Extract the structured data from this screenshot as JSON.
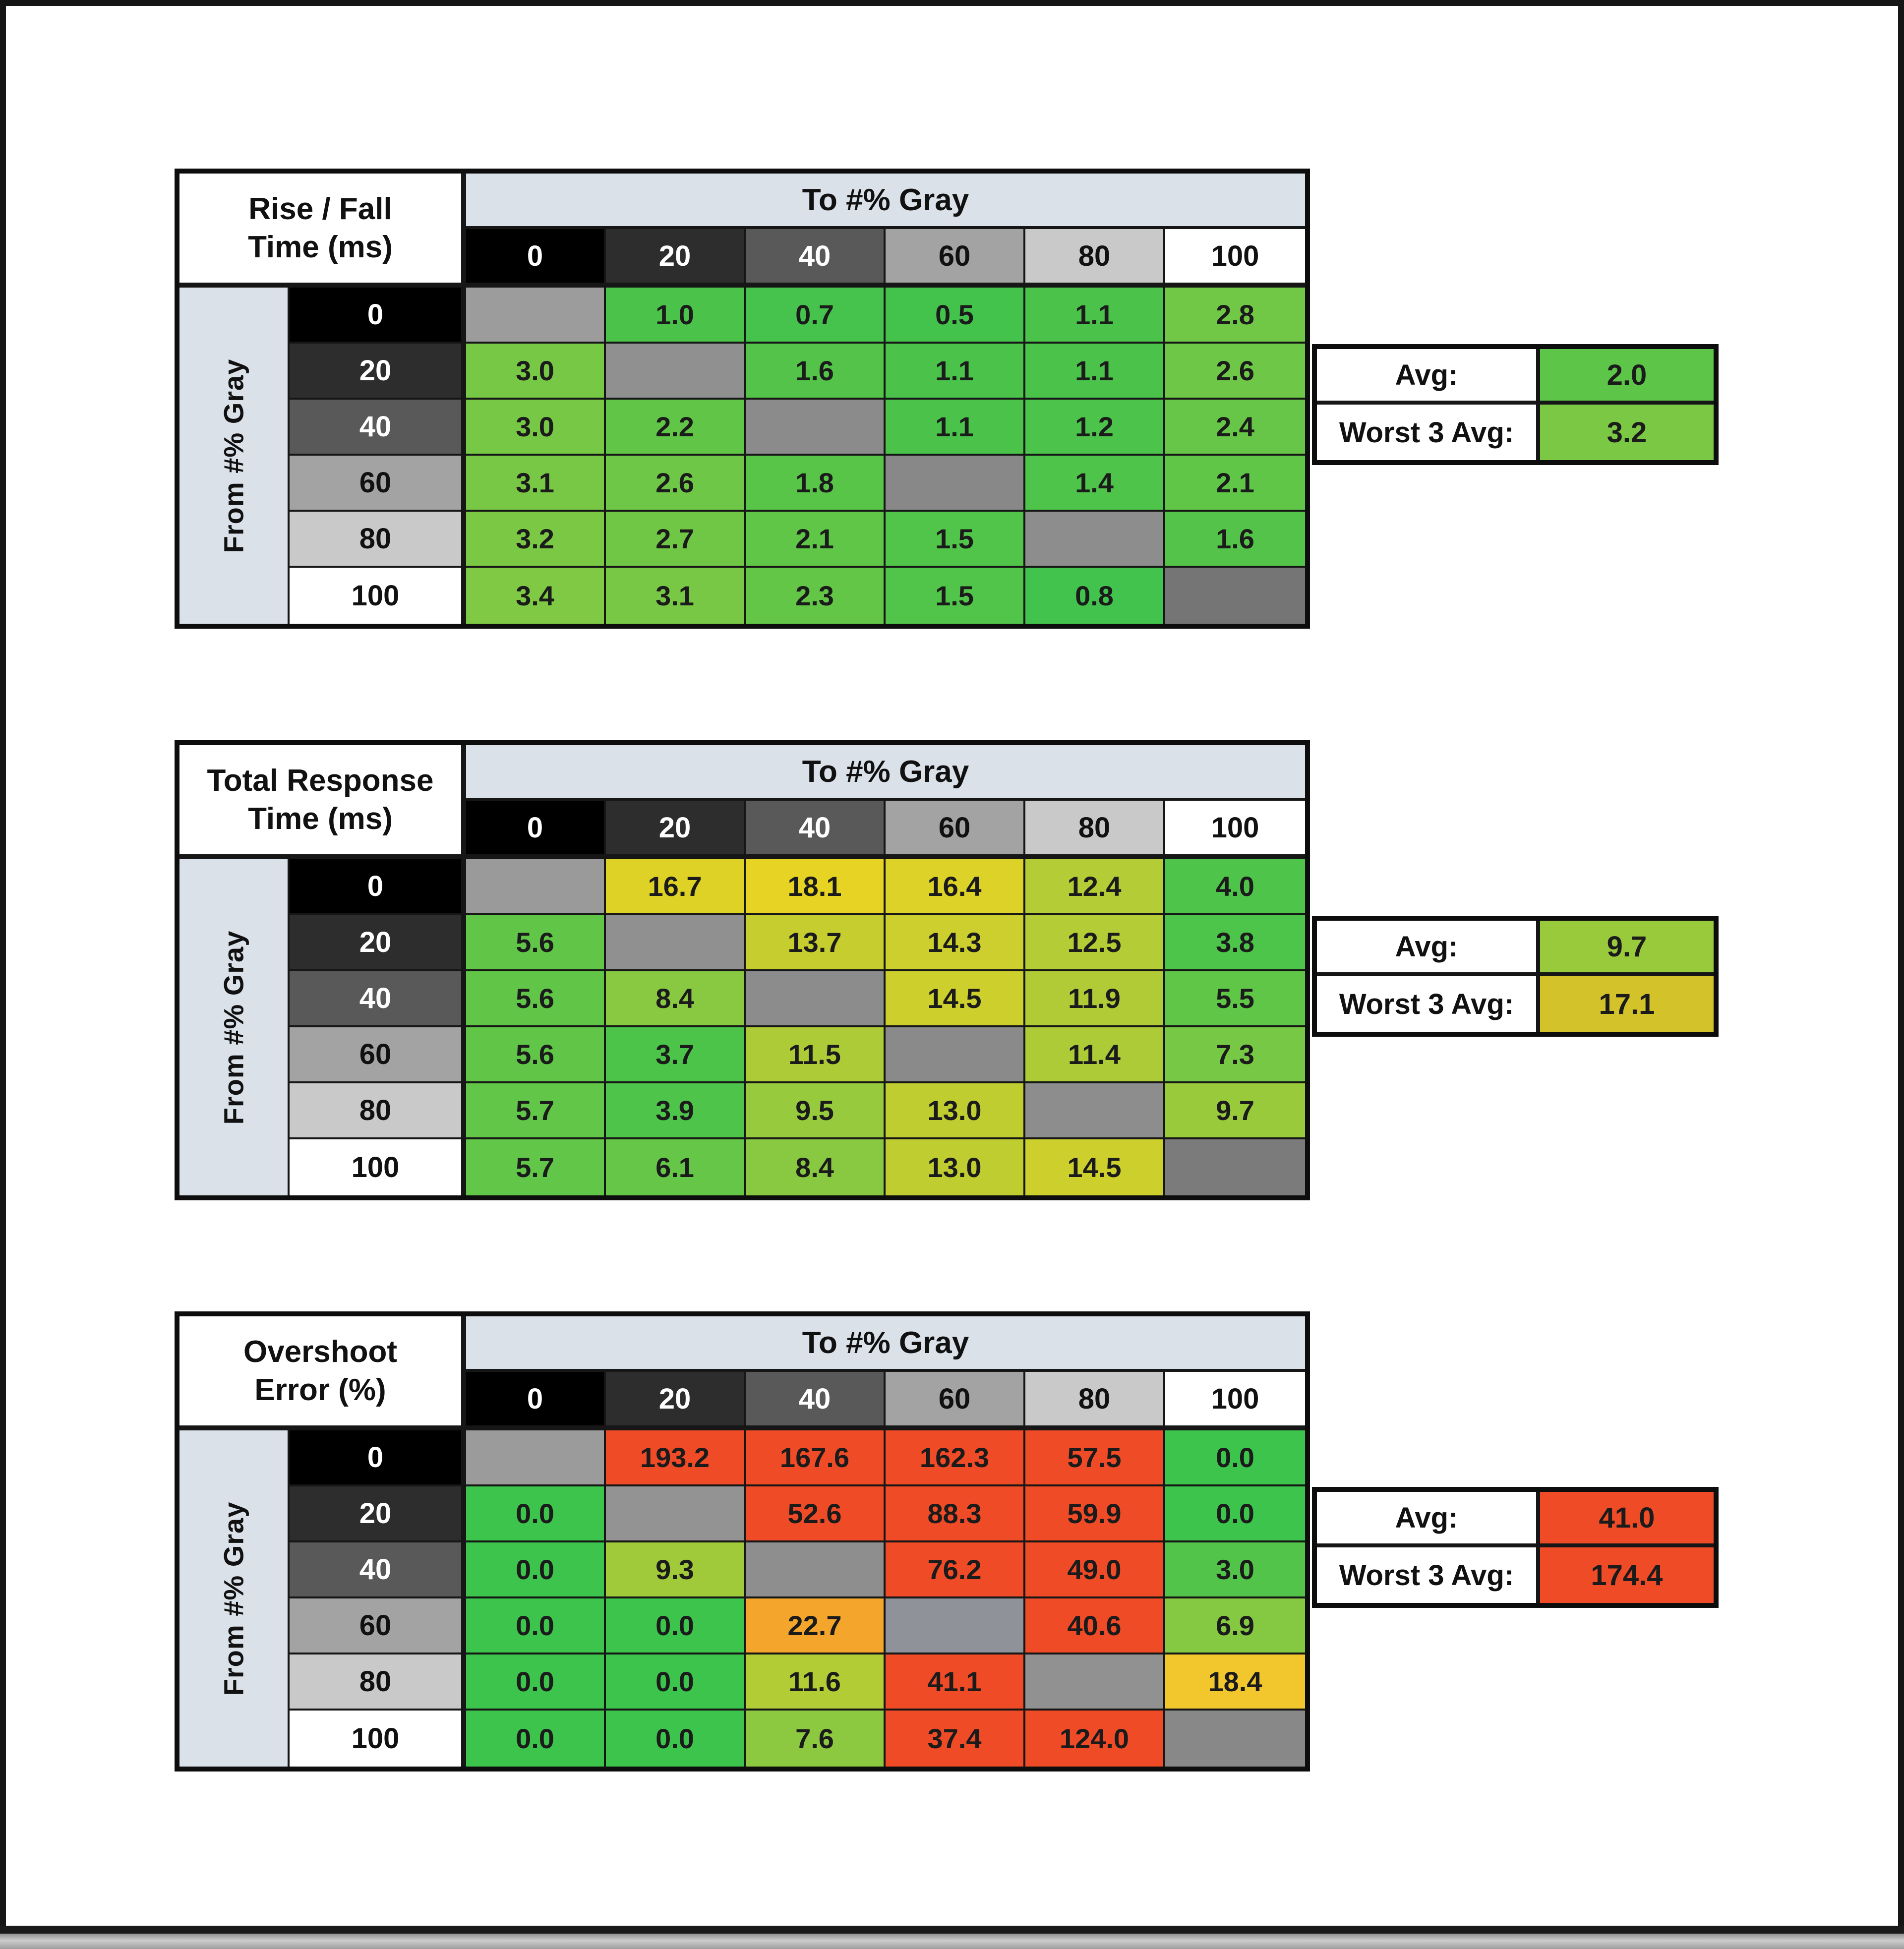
{
  "page": {
    "col_axis_label": "To #% Gray",
    "row_axis_label": "From #% Gray",
    "avg_label": "Avg:",
    "worst_label": "Worst 3 Avg:"
  },
  "header_styles": [
    {
      "label": "0",
      "bg": "#000000",
      "fg": "#ffffff"
    },
    {
      "label": "20",
      "bg": "#2d2d2d",
      "fg": "#ffffff"
    },
    {
      "label": "40",
      "bg": "#595959",
      "fg": "#ffffff"
    },
    {
      "label": "60",
      "bg": "#a3a3a3",
      "fg": "#111111"
    },
    {
      "label": "80",
      "bg": "#c9c9c9",
      "fg": "#111111"
    },
    {
      "label": "100",
      "bg": "#ffffff",
      "fg": "#111111"
    }
  ],
  "chart_data": [
    {
      "type": "heatmap",
      "name": "rise-fall-time",
      "title": "Rise / Fall Time (ms)",
      "title_lines": [
        "Rise / Fall",
        "Time (ms)"
      ],
      "col_axis_label": "To #% Gray",
      "row_axis_label": "From #% Gray",
      "columns": [
        "0",
        "20",
        "40",
        "60",
        "80",
        "100"
      ],
      "rows": [
        "0",
        "20",
        "40",
        "60",
        "80",
        "100"
      ],
      "values": [
        [
          null,
          "1.0",
          "0.7",
          "0.5",
          "1.1",
          "2.8"
        ],
        [
          "3.0",
          null,
          "1.6",
          "1.1",
          "1.1",
          "2.6"
        ],
        [
          "3.0",
          "2.2",
          null,
          "1.1",
          "1.2",
          "2.4"
        ],
        [
          "3.1",
          "2.6",
          "1.8",
          null,
          "1.4",
          "2.1"
        ],
        [
          "3.2",
          "2.7",
          "2.1",
          "1.5",
          null,
          "1.6"
        ],
        [
          "3.4",
          "3.1",
          "2.3",
          "1.5",
          "0.8",
          null
        ]
      ],
      "cell_colors": [
        [
          null,
          "#4bc34b",
          "#46c34c",
          "#44c34c",
          "#4bc34b",
          "#71c746"
        ],
        [
          "#77c845",
          null,
          "#53c449",
          "#4bc34b",
          "#4bc34b",
          "#6ec746"
        ],
        [
          "#77c845",
          "#61c647",
          null,
          "#4bc34b",
          "#4cc34b",
          "#67c647"
        ],
        [
          "#79c845",
          "#6ec746",
          "#58c549",
          null,
          "#4fc44a",
          "#60c648"
        ],
        [
          "#7bc845",
          "#70c746",
          "#60c648",
          "#51c44a",
          null,
          "#53c449"
        ],
        [
          "#7fc944",
          "#79c845",
          "#63c647",
          "#51c44a",
          "#42c34d",
          null
        ]
      ],
      "diag_colors": [
        "#9c9c9c",
        "#909090",
        "#8b8b8b",
        "#888888",
        "#8d8d8d",
        "#757575"
      ],
      "avg": {
        "value": "2.0",
        "color": "#5dc548"
      },
      "worst3": {
        "value": "3.2",
        "color": "#7bc845"
      }
    },
    {
      "type": "heatmap",
      "name": "total-response-time",
      "title": "Total Response Time (ms)",
      "title_lines": [
        "Total Response",
        "Time (ms)"
      ],
      "col_axis_label": "To #% Gray",
      "row_axis_label": "From #% Gray",
      "columns": [
        "0",
        "20",
        "40",
        "60",
        "80",
        "100"
      ],
      "rows": [
        "0",
        "20",
        "40",
        "60",
        "80",
        "100"
      ],
      "values": [
        [
          null,
          "16.7",
          "18.1",
          "16.4",
          "12.4",
          "4.0"
        ],
        [
          "5.6",
          null,
          "13.7",
          "14.3",
          "12.5",
          "3.8"
        ],
        [
          "5.6",
          "8.4",
          null,
          "14.5",
          "11.9",
          "5.5"
        ],
        [
          "5.6",
          "3.7",
          "11.5",
          null,
          "11.4",
          "7.3"
        ],
        [
          "5.7",
          "3.9",
          "9.5",
          "13.0",
          null,
          "9.7"
        ],
        [
          "5.7",
          "6.1",
          "8.4",
          "13.0",
          "14.5",
          null
        ]
      ],
      "cell_colors": [
        [
          null,
          "#dfd226",
          "#e6d324",
          "#ddd227",
          "#b4cc35",
          "#4fc44a"
        ],
        [
          "#61c648",
          null,
          "#c6ce2f",
          "#cccf2d",
          "#b4cc35",
          "#4dc44a"
        ],
        [
          "#61c648",
          "#88c941",
          null,
          "#cdcf2d",
          "#b0cb36",
          "#5fc648"
        ],
        [
          "#61c648",
          "#4cc44a",
          "#adcb37",
          null,
          "#accb37",
          "#77c845"
        ],
        [
          "#62c648",
          "#4ec44a",
          "#97ca3d",
          "#bfcd31",
          null,
          "#99ca3c"
        ],
        [
          "#62c648",
          "#66c647",
          "#88c941",
          "#bfcd31",
          "#cdcf2d",
          null
        ]
      ],
      "diag_colors": [
        "#9a9a9a",
        "#909090",
        "#8c8c8c",
        "#8a8a8a",
        "#8d8d8d",
        "#7b7b7b"
      ],
      "avg": {
        "value": "9.7",
        "color": "#99ca3c"
      },
      "worst3": {
        "value": "17.1",
        "color": "#d4c22b"
      }
    },
    {
      "type": "heatmap",
      "name": "overshoot-error",
      "title": "Overshoot Error (%)",
      "title_lines": [
        "Overshoot",
        "Error (%)"
      ],
      "col_axis_label": "To #% Gray",
      "row_axis_label": "From #% Gray",
      "columns": [
        "0",
        "20",
        "40",
        "60",
        "80",
        "100"
      ],
      "rows": [
        "0",
        "20",
        "40",
        "60",
        "80",
        "100"
      ],
      "values": [
        [
          null,
          "193.2",
          "167.6",
          "162.3",
          "57.5",
          "0.0"
        ],
        [
          "0.0",
          null,
          "52.6",
          "88.3",
          "59.9",
          "0.0"
        ],
        [
          "0.0",
          "9.3",
          null,
          "76.2",
          "49.0",
          "3.0"
        ],
        [
          "0.0",
          "0.0",
          "22.7",
          null,
          "40.6",
          "6.9"
        ],
        [
          "0.0",
          "0.0",
          "11.6",
          "41.1",
          null,
          "18.4"
        ],
        [
          "0.0",
          "0.0",
          "7.6",
          "37.4",
          "124.0",
          null
        ]
      ],
      "cell_colors": [
        [
          null,
          "#f04b27",
          "#f04b27",
          "#f04b27",
          "#f04b27",
          "#3dc44d"
        ],
        [
          "#3dc44d",
          null,
          "#f04b27",
          "#f04b27",
          "#f04b27",
          "#3dc44d"
        ],
        [
          "#3dc44d",
          "#a0ca3a",
          null,
          "#f04b27",
          "#f04b27",
          "#52c449"
        ],
        [
          "#3dc44d",
          "#3dc44d",
          "#f4a52c",
          null,
          "#f04b27",
          "#85c942"
        ],
        [
          "#3dc44d",
          "#3dc44d",
          "#b2cc35",
          "#f04b27",
          null,
          "#f2c72e"
        ],
        [
          "#3dc44d",
          "#3dc44d",
          "#8dc940",
          "#f04b27",
          "#f04b27",
          null
        ]
      ],
      "diag_colors": [
        "#9b9b9b",
        "#939393",
        "#8e8e8e",
        "#8f9298",
        "#919191",
        "#888888"
      ],
      "avg": {
        "value": "41.0",
        "color": "#f04b27"
      },
      "worst3": {
        "value": "174.4",
        "color": "#f04b27"
      }
    }
  ]
}
